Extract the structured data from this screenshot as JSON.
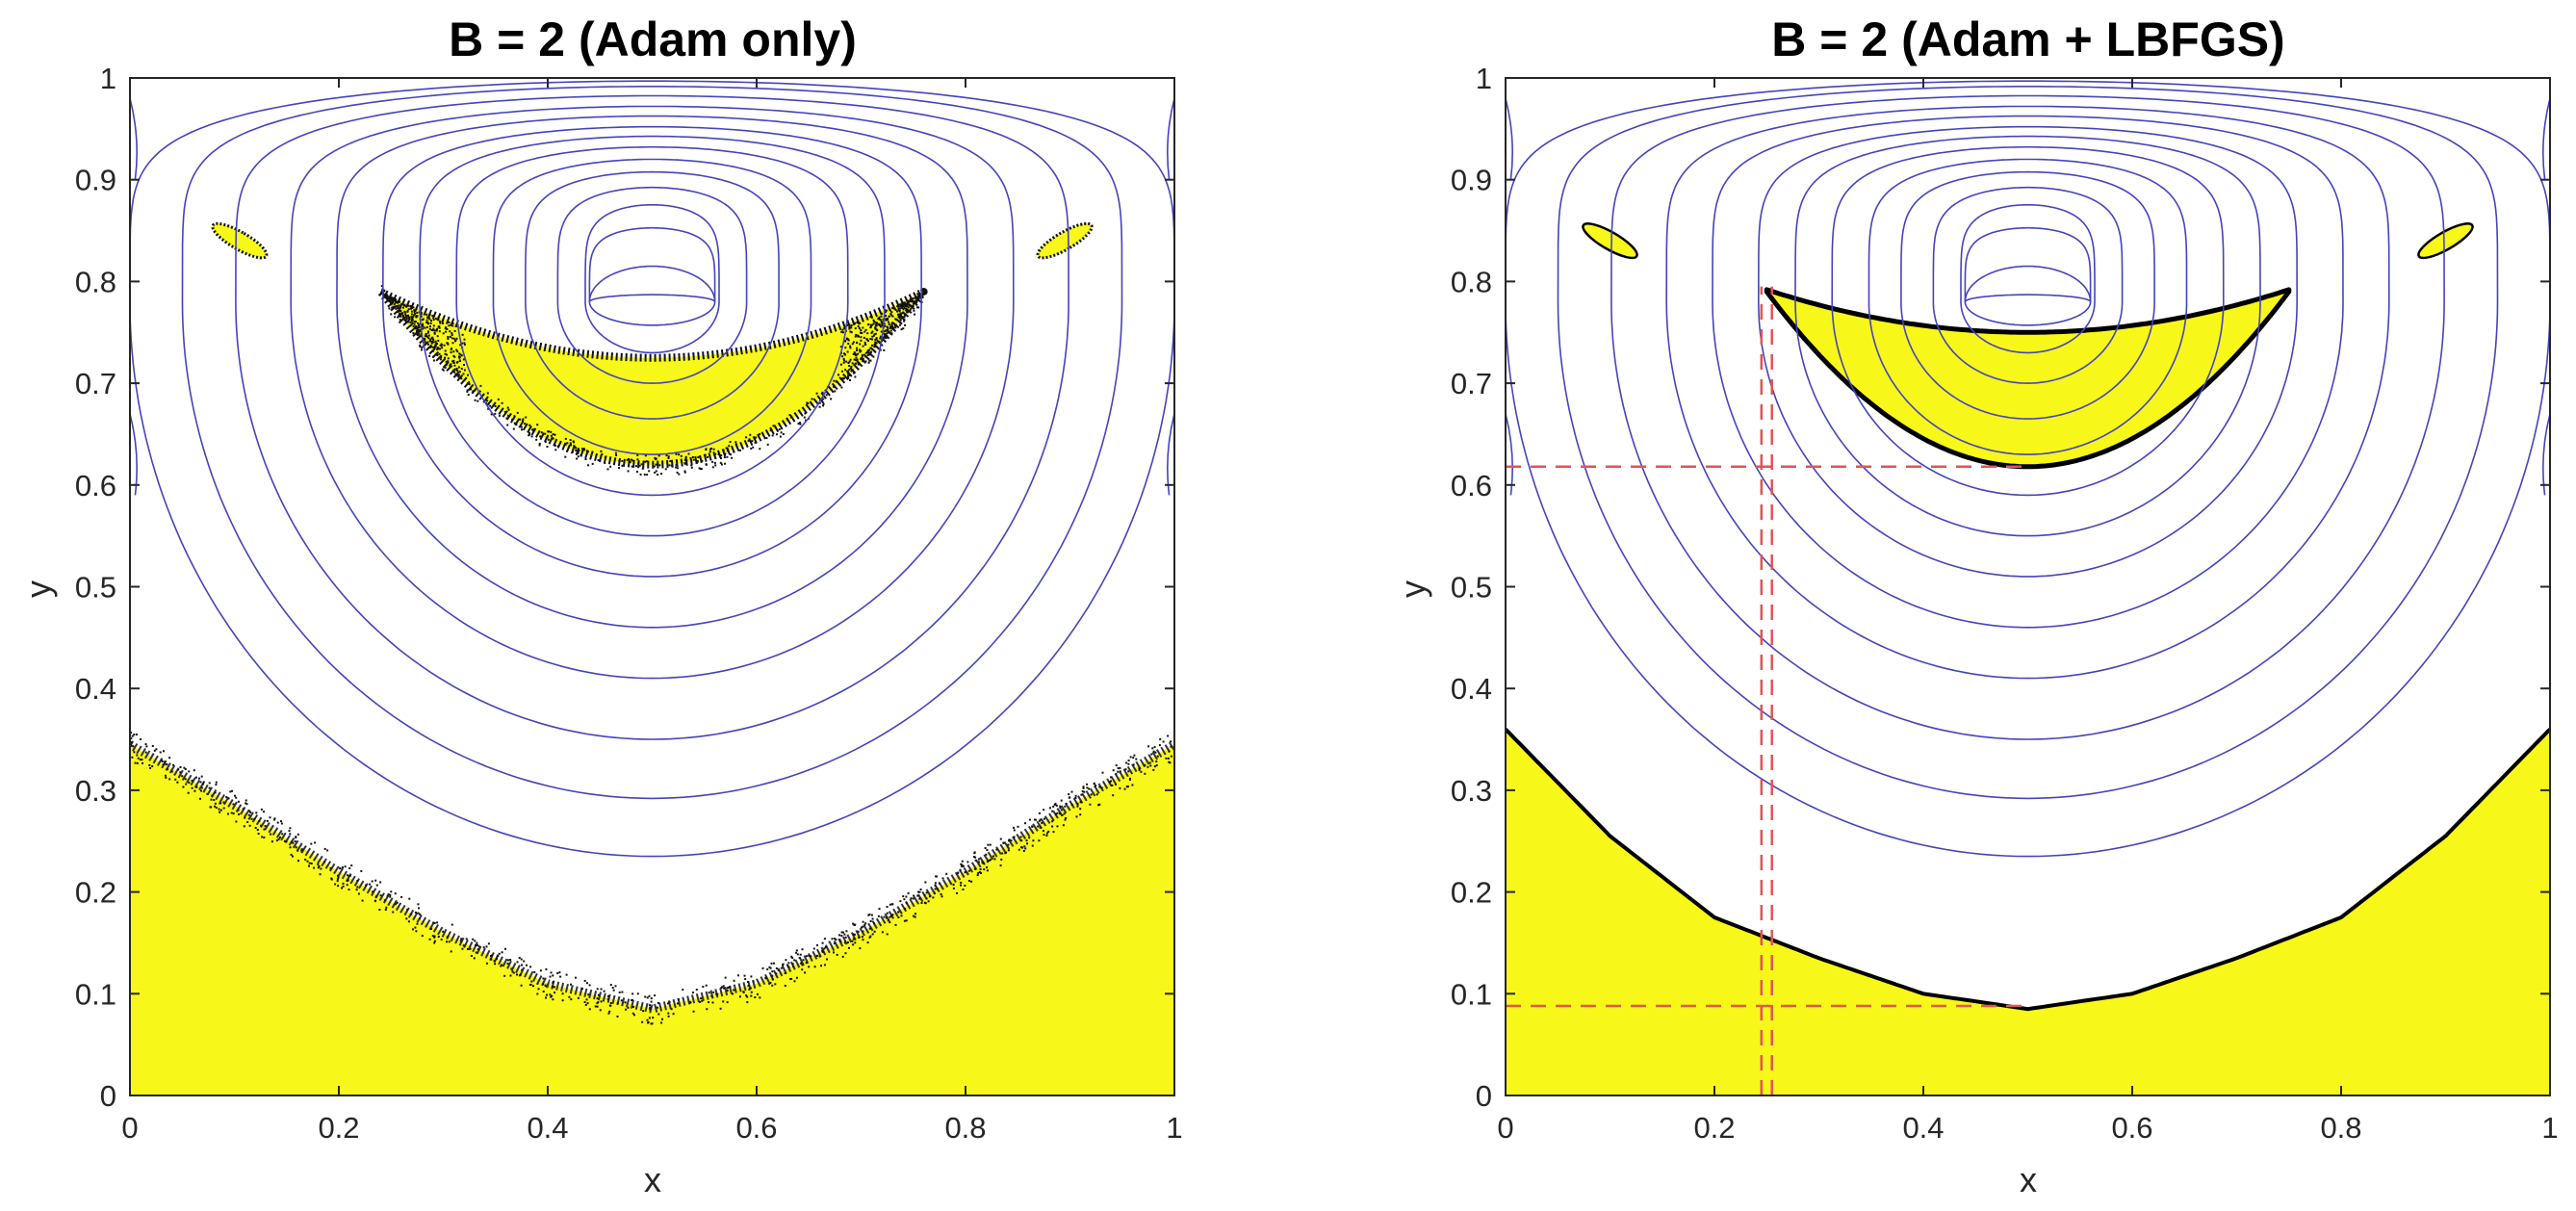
{
  "chart_data": [
    {
      "type": "contour",
      "title": "B = 2 (Adam only)",
      "xlabel": "x",
      "ylabel": "y",
      "xlim": [
        0,
        1
      ],
      "ylim": [
        0,
        1
      ],
      "xticks": [
        "0",
        "0.2",
        "0.4",
        "0.6",
        "0.8",
        "1"
      ],
      "yticks": [
        "0",
        "0.1",
        "0.2",
        "0.3",
        "0.4",
        "0.5",
        "0.6",
        "0.7",
        "0.8",
        "0.9",
        "1"
      ],
      "grid": false,
      "contour_color": "#4444bb",
      "fill_color": "#f7f71a",
      "boundary_color": "#111111",
      "vortex_center": [
        0.5,
        0.78
      ],
      "streamline_bottom_y": [
        0.235,
        0.292,
        0.35,
        0.41,
        0.46,
        0.51,
        0.55,
        0.59,
        0.63,
        0.665,
        0.7,
        0.73,
        0.757,
        0.787,
        0.815
      ],
      "yielded_regions": [
        {
          "name": "bottom plug",
          "boundary": {
            "x": [
              0,
              0.1,
              0.2,
              0.3,
              0.4,
              0.5,
              0.6,
              0.7,
              0.8,
              0.9,
              1
            ],
            "y": [
              0.345,
              0.285,
              0.22,
              0.16,
              0.11,
              0.085,
              0.11,
              0.16,
              0.22,
              0.285,
              0.345
            ]
          }
        },
        {
          "name": "upper plug",
          "top": {
            "x": [
              0.24,
              0.5,
              0.76
            ],
            "y": [
              0.79,
              0.725,
              0.79
            ]
          },
          "bottom": {
            "x": [
              0.24,
              0.5,
              0.76
            ],
            "y": [
              0.79,
              0.62,
              0.79
            ]
          }
        },
        {
          "name": "left corner plug",
          "center": [
            0.105,
            0.84
          ]
        },
        {
          "name": "right corner plug",
          "center": [
            0.895,
            0.84
          ]
        }
      ],
      "boundary_style": "scattered"
    },
    {
      "type": "contour",
      "title": "B = 2 (Adam + LBFGS)",
      "xlabel": "x",
      "ylabel": "y",
      "xlim": [
        0,
        1
      ],
      "ylim": [
        0,
        1
      ],
      "xticks": [
        "0",
        "0.2",
        "0.4",
        "0.6",
        "0.8",
        "1"
      ],
      "yticks": [
        "0",
        "0.1",
        "0.2",
        "0.3",
        "0.4",
        "0.5",
        "0.6",
        "0.7",
        "0.8",
        "0.9",
        "1"
      ],
      "grid": false,
      "contour_color": "#4444bb",
      "fill_color": "#f7f71a",
      "boundary_color": "#000000",
      "vortex_center": [
        0.5,
        0.78
      ],
      "streamline_bottom_y": [
        0.235,
        0.292,
        0.35,
        0.41,
        0.46,
        0.51,
        0.55,
        0.59,
        0.63,
        0.665,
        0.7,
        0.73,
        0.757,
        0.787,
        0.815
      ],
      "yielded_regions": [
        {
          "name": "bottom plug",
          "boundary": {
            "x": [
              0,
              0.1,
              0.2,
              0.3,
              0.4,
              0.5,
              0.6,
              0.7,
              0.8,
              0.9,
              1
            ],
            "y": [
              0.36,
              0.255,
              0.175,
              0.135,
              0.1,
              0.085,
              0.1,
              0.135,
              0.175,
              0.255,
              0.36
            ]
          }
        },
        {
          "name": "upper plug",
          "top": {
            "x": [
              0.25,
              0.5,
              0.75
            ],
            "y": [
              0.792,
              0.75,
              0.792
            ]
          },
          "bottom": {
            "x": [
              0.25,
              0.5,
              0.75
            ],
            "y": [
              0.79,
              0.618,
              0.79
            ]
          }
        },
        {
          "name": "left corner plug",
          "center": [
            0.1,
            0.84
          ]
        },
        {
          "name": "right corner plug",
          "center": [
            0.9,
            0.84
          ]
        }
      ],
      "boundary_style": "sharp",
      "reference_lines": {
        "color": "#e05555",
        "vertical_x": [
          0.245,
          0.255
        ],
        "horizontal_y": [
          0.618,
          0.088
        ]
      }
    }
  ]
}
